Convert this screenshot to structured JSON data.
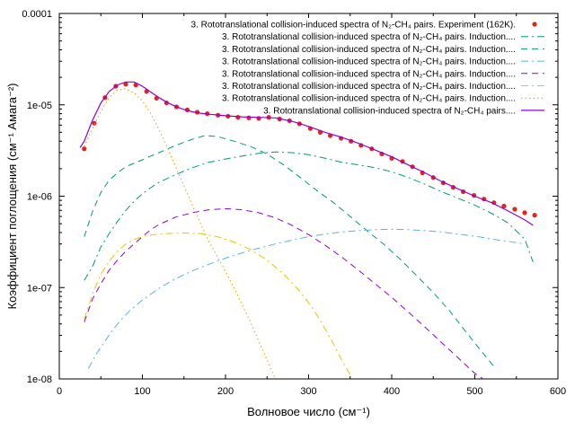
{
  "chart_data": {
    "type": "line",
    "title": "",
    "xlabel": "Волновое число (см⁻¹)",
    "ylabel": "Коэффициент поглощения (см⁻¹ Амага⁻²)",
    "xlim": [
      0,
      600
    ],
    "ylim": [
      1e-08,
      0.0001
    ],
    "y_scale": "log",
    "x_ticks": [
      "0",
      "100",
      "200",
      "300",
      "400",
      "500",
      "600"
    ],
    "y_ticks": [
      "1e-08",
      "1e-07",
      "1e-06",
      "1e-05",
      "0.0001"
    ],
    "grid": false,
    "legend_position": "top-right",
    "series": [
      {
        "name": "3. Rototranslational collision-induced spectra of N₂-CH₄ pairs. Experiment (162K).",
        "style": "points",
        "color": "#e8231a",
        "x": [
          30,
          42,
          55,
          68,
          80,
          92,
          105,
          117,
          129,
          141,
          154,
          166,
          178,
          191,
          203,
          215,
          228,
          240,
          252,
          265,
          277,
          289,
          302,
          314,
          326,
          339,
          351,
          363,
          376,
          388,
          400,
          413,
          425,
          437,
          450,
          462,
          474,
          486,
          499,
          511,
          523,
          535,
          548,
          560,
          572
        ],
        "y": [
          3.3e-06,
          6.3e-06,
          1.2e-05,
          1.6e-05,
          1.68e-05,
          1.65e-05,
          1.4e-05,
          1.18e-05,
          1.05e-05,
          9.5e-06,
          8.8e-06,
          8.3e-06,
          8e-06,
          7.7e-06,
          7.5e-06,
          7.3e-06,
          7.2e-06,
          7.1e-06,
          7.3e-06,
          7e-06,
          6.7e-06,
          6.2e-06,
          5.5e-06,
          5e-06,
          4.6e-06,
          4.3e-06,
          4e-06,
          3.6e-06,
          3.3e-06,
          2.9e-06,
          2.6e-06,
          2.4e-06,
          2.1e-06,
          1.8e-06,
          1.6e-06,
          1.4e-06,
          1.25e-06,
          1.12e-06,
          1.02e-06,
          9.3e-07,
          8.5e-07,
          7.8e-07,
          7.2e-07,
          6.6e-07,
          6.2e-07
        ]
      },
      {
        "name": "3. Rototranslational collision-induced spectra of N₂-CH₄ pairs. Induction....",
        "style": "dash-dot",
        "color": "#009a75",
        "x": [
          30,
          40,
          50,
          60,
          70,
          80,
          90,
          100,
          110,
          120,
          140,
          160,
          180,
          200,
          220,
          240,
          260,
          280,
          300,
          320,
          340,
          360,
          380,
          400,
          420,
          440,
          460,
          480,
          500,
          520,
          540,
          560,
          570
        ],
        "y": [
          1.2e-07,
          1.7e-07,
          2.8e-07,
          3.9e-07,
          5.3e-07,
          7e-07,
          8.8e-07,
          1.06e-06,
          1.24e-06,
          1.42e-06,
          1.72e-06,
          2.05e-06,
          2.35e-06,
          2.55e-06,
          2.75e-06,
          2.95e-06,
          3.05e-06,
          3e-06,
          2.85e-06,
          2.6e-06,
          2.35e-06,
          2.2e-06,
          2.05e-06,
          1.85e-06,
          1.6e-06,
          1.35e-06,
          1.12e-06,
          9.5e-07,
          8e-07,
          6.5e-07,
          5.1e-07,
          3.4e-07,
          1.9e-07
        ]
      },
      {
        "name": "3. Rototranslational collision-induced spectra of N₂-CH₄ pairs. Induction....",
        "style": "dashed",
        "color": "#009a75",
        "x": [
          30,
          40,
          50,
          60,
          70,
          80,
          90,
          100,
          110,
          120,
          140,
          160,
          175,
          190,
          210,
          230,
          250,
          270,
          290,
          310,
          330,
          350,
          370,
          390,
          410,
          430,
          450,
          470,
          490,
          510,
          525
        ],
        "y": [
          3.6e-07,
          6.8e-07,
          1.1e-06,
          1.5e-06,
          1.8e-06,
          2.1e-06,
          2.3e-06,
          2.5e-06,
          2.75e-06,
          3e-06,
          3.6e-06,
          4.2e-06,
          4.6e-06,
          4.5e-06,
          4e-06,
          3.5e-06,
          2.9e-06,
          2.2e-06,
          1.6e-06,
          1.15e-06,
          8.5e-07,
          6e-07,
          4.2e-07,
          3e-07,
          2.05e-07,
          1.35e-07,
          8.8e-08,
          5.5e-08,
          3.2e-08,
          1.9e-08,
          1.3e-08
        ]
      },
      {
        "name": "3. Rototranslational collision-induced spectra of N₂-CH₄ pairs. Induction....",
        "style": "dash-dot",
        "color": "#56b4e9",
        "x": [
          35,
          45,
          55,
          65,
          75,
          85,
          100,
          120,
          140,
          160,
          180,
          200,
          220,
          240,
          260,
          280,
          300,
          320,
          340,
          360,
          380,
          400,
          420,
          440,
          460,
          480,
          500,
          520,
          540,
          560
        ],
        "y": [
          1.3e-08,
          1.9e-08,
          2.6e-08,
          3.5e-08,
          4.5e-08,
          5.6e-08,
          7.3e-08,
          9.8e-08,
          1.25e-07,
          1.52e-07,
          1.8e-07,
          2.1e-07,
          2.4e-07,
          2.7e-07,
          3e-07,
          3.3e-07,
          3.6e-07,
          3.85e-07,
          4.05e-07,
          4.2e-07,
          4.3e-07,
          4.35e-07,
          4.3e-07,
          4.2e-07,
          4.05e-07,
          3.85e-07,
          3.65e-07,
          3.4e-07,
          3.2e-07,
          3e-07
        ]
      },
      {
        "name": "3. Rototranslational collision-induced spectra of N₂-CH₄ pairs. Induction....",
        "style": "dashed",
        "color": "#9400d3",
        "x": [
          30,
          40,
          50,
          60,
          70,
          80,
          90,
          100,
          110,
          120,
          140,
          160,
          180,
          200,
          220,
          240,
          260,
          280,
          300,
          320,
          340,
          360,
          380,
          400,
          420,
          440,
          460,
          480,
          500,
          510
        ],
        "y": [
          4.2e-08,
          7.5e-08,
          1.1e-07,
          1.55e-07,
          2e-07,
          2.5e-07,
          3e-07,
          3.6e-07,
          4.3e-07,
          4.9e-07,
          5.9e-07,
          6.6e-07,
          7.1e-07,
          7.3e-07,
          7.1e-07,
          6.6e-07,
          5.8e-07,
          4.8e-07,
          3.8e-07,
          2.9e-07,
          2.15e-07,
          1.55e-07,
          1.1e-07,
          7.8e-08,
          5.4e-08,
          3.7e-08,
          2.5e-08,
          1.7e-08,
          1.15e-08,
          1e-08
        ]
      },
      {
        "name": "3. Rototranslational collision-induced spectra of N₂-CH₄ pairs. Induction....",
        "style": "dash-dot",
        "color": "#e6c800",
        "x": [
          30,
          40,
          50,
          60,
          70,
          80,
          90,
          100,
          110,
          120,
          130,
          150,
          170,
          190,
          210,
          230,
          250,
          270,
          290,
          300,
          310,
          320,
          330,
          340,
          350
        ],
        "y": [
          4.5e-08,
          8.5e-08,
          1.4e-07,
          1.95e-07,
          2.5e-07,
          3e-07,
          3.35e-07,
          3.6e-07,
          3.75e-07,
          3.85e-07,
          3.9e-07,
          3.95e-07,
          3.9e-07,
          3.6e-07,
          3.15e-07,
          2.6e-07,
          2e-07,
          1.4e-07,
          9e-08,
          6.8e-08,
          5e-08,
          3.5e-08,
          2.4e-08,
          1.6e-08,
          1.1e-08
        ]
      },
      {
        "name": "3. Rototranslational collision-induced spectra of N₂-CH₄ pairs. Induction....",
        "style": "dotted",
        "color": "#e69f00",
        "x": [
          30,
          40,
          50,
          60,
          70,
          80,
          90,
          100,
          110,
          120,
          130,
          140,
          150,
          160,
          170,
          180,
          190,
          200,
          210,
          220,
          230,
          240,
          250,
          260
        ],
        "y": [
          3.5e-06,
          5.5e-06,
          8.5e-06,
          1.2e-05,
          1.45e-05,
          1.5e-05,
          1.35e-05,
          1.1e-05,
          8e-06,
          5.4e-06,
          3.4e-06,
          2.1e-06,
          1.3e-06,
          8e-07,
          5e-07,
          3.2e-07,
          2.2e-07,
          1.5e-07,
          1e-07,
          6.5e-08,
          4.2e-08,
          2.6e-08,
          1.6e-08,
          1e-08
        ]
      },
      {
        "name": "3. Rototranslational collision-induced spectra of N₂-CH₄ pairs....",
        "style": "solid",
        "color": "#9400d3",
        "x": [
          25,
          30,
          40,
          50,
          60,
          70,
          80,
          90,
          100,
          110,
          120,
          130,
          140,
          150,
          160,
          170,
          180,
          190,
          200,
          220,
          240,
          260,
          280,
          300,
          320,
          340,
          360,
          380,
          400,
          420,
          440,
          460,
          480,
          500,
          520,
          540,
          560,
          570
        ],
        "y": [
          3.4e-06,
          4e-06,
          6.8e-06,
          1.05e-05,
          1.4e-05,
          1.65e-05,
          1.78e-05,
          1.78e-05,
          1.6e-05,
          1.38e-05,
          1.2e-05,
          1.06e-05,
          9.6e-06,
          8.9e-06,
          8.4e-06,
          8.1e-06,
          7.9e-06,
          7.75e-06,
          7.6e-06,
          7.4e-06,
          7.3e-06,
          7.2e-06,
          6.6e-06,
          5.8e-06,
          5e-06,
          4.4e-06,
          3.8e-06,
          3.2e-06,
          2.7e-06,
          2.2e-06,
          1.8e-06,
          1.45e-06,
          1.2e-06,
          1e-06,
          8.5e-07,
          6.9e-07,
          5.5e-07,
          4.8e-07
        ]
      }
    ]
  }
}
